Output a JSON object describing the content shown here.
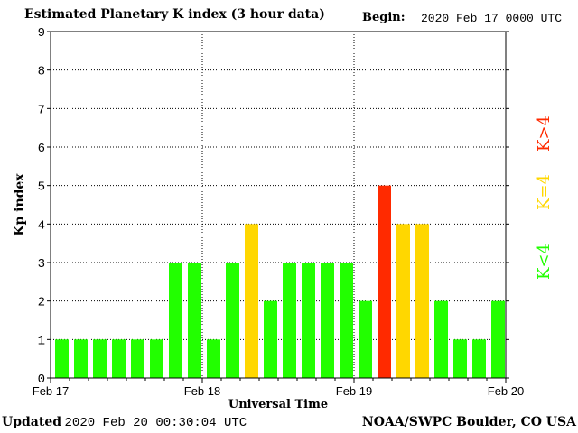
{
  "header": {
    "title": "Estimated Planetary K index (3 hour data)",
    "begin_label": "Begin:",
    "begin_value": "2020 Feb 17 0000 UTC"
  },
  "footer": {
    "updated_label": "Updated",
    "updated_value": "2020 Feb 20 00:30:04 UTC",
    "source": "NOAA/SWPC Boulder, CO USA"
  },
  "legend": {
    "k_less_4": "K<4",
    "k_eq_4": "K=4",
    "k_greater_4": "K>4"
  },
  "colors": {
    "k_less_4": "#22ff00",
    "k_eq_4": "#ffd700",
    "k_greater_4": "#ff2a00"
  },
  "chart_data": {
    "type": "bar",
    "title": "Estimated Planetary K index (3 hour data)",
    "xlabel": "Universal Time",
    "ylabel": "Kp index",
    "ylim": [
      0,
      9
    ],
    "yticks": [
      0,
      1,
      2,
      3,
      4,
      5,
      6,
      7,
      8,
      9
    ],
    "xlim_hours": [
      0,
      72
    ],
    "x_tick_labels": [
      "Feb 17",
      "Feb 18",
      "Feb 19",
      "Feb 20"
    ],
    "bar_interval_hours": 3,
    "values": [
      1,
      1,
      1,
      1,
      1,
      1,
      3,
      3,
      1,
      3,
      4,
      2,
      3,
      3,
      3,
      3,
      2,
      5,
      4,
      4,
      2,
      1,
      1,
      2
    ],
    "grid": true
  }
}
